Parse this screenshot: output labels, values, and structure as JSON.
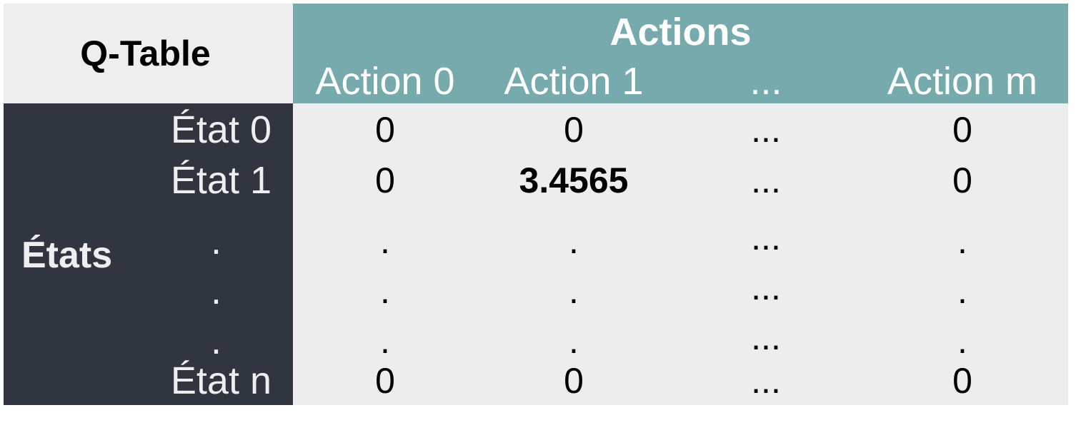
{
  "table": {
    "title": "Q-Table",
    "column_group_label": "Actions",
    "row_group_label": "États",
    "columns": [
      "Action 0",
      "Action 1",
      "...",
      "Action m"
    ],
    "rows": [
      {
        "label": "État 0",
        "values": [
          "0",
          "0",
          "...",
          "0"
        ],
        "highlight": []
      },
      {
        "label": "État 1",
        "values": [
          "0",
          "3.4565",
          "...",
          "0"
        ],
        "highlight": [
          1
        ]
      },
      {
        "label": ".",
        "values": [
          ".",
          ".",
          "...",
          "."
        ],
        "highlight": []
      },
      {
        "label": ".",
        "values": [
          ".",
          ".",
          "...",
          "."
        ],
        "highlight": []
      },
      {
        "label": ".",
        "values": [
          ".",
          ".",
          "...",
          "."
        ],
        "highlight": []
      },
      {
        "label": "État n",
        "values": [
          "0",
          "0",
          "...",
          "0"
        ],
        "highlight": []
      }
    ]
  },
  "colors": {
    "header_teal": "#76aaac",
    "states_dark": "#30353f",
    "cell_background": "#ededed",
    "corner_background": "#eeeeee",
    "light_text": "#ffffff"
  }
}
